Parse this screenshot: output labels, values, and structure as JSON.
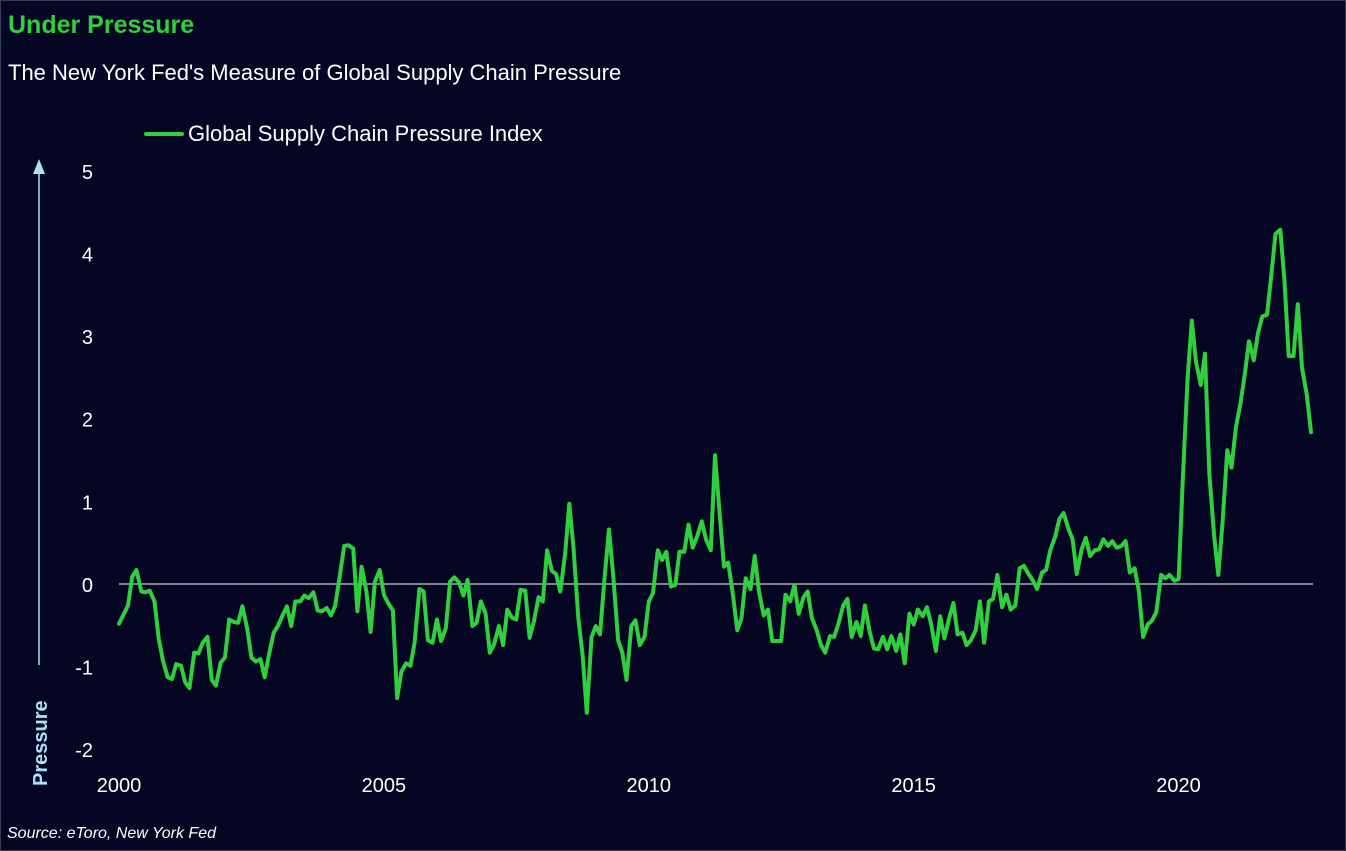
{
  "colors": {
    "background": "#050624",
    "series": "#2fcf3e",
    "title": "#2fcf3e",
    "text": "#ffffff",
    "arrow": "#a9e0f2"
  },
  "header": {
    "title": "Under Pressure",
    "subtitle": "The New York Fed's Measure of Global Supply Chain Pressure"
  },
  "footer": {
    "source": "Source: eToro, New York Fed"
  },
  "chart_data": {
    "type": "line",
    "title": "Under Pressure",
    "subtitle": "The New York Fed's Measure of Global Supply Chain Pressure",
    "ylabel": "Pressure",
    "xlabel": "",
    "legend_position": "top-left",
    "grid": false,
    "zero_line": true,
    "xlim": [
      2000.0,
      2022.5
    ],
    "ylim": [
      -2,
      5
    ],
    "x_ticks": [
      2000,
      2005,
      2010,
      2015,
      2020
    ],
    "y_ticks": [
      -2,
      -1,
      0,
      1,
      2,
      3,
      4,
      5
    ],
    "y_tick_labels": [
      "-2",
      "-1",
      "0",
      "1",
      "2",
      "3",
      "4",
      "5"
    ],
    "x_tick_labels": [
      "2000",
      "2005",
      "2010",
      "2015",
      "2020"
    ],
    "series": [
      {
        "name": "Global Supply Chain Pressure Index",
        "x": [
          2000.0,
          2000.17,
          2000.25,
          2000.33,
          2000.42,
          2000.5,
          2000.58,
          2000.67,
          2000.75,
          2000.83,
          2000.92,
          2001.0,
          2001.08,
          2001.17,
          2001.25,
          2001.33,
          2001.42,
          2001.5,
          2001.58,
          2001.67,
          2001.75,
          2001.83,
          2001.92,
          2002.0,
          2002.08,
          2002.17,
          2002.25,
          2002.33,
          2002.42,
          2002.5,
          2002.58,
          2002.67,
          2002.75,
          2002.83,
          2002.92,
          2003.0,
          2003.08,
          2003.17,
          2003.25,
          2003.33,
          2003.42,
          2003.5,
          2003.58,
          2003.67,
          2003.75,
          2003.83,
          2003.92,
          2004.0,
          2004.08,
          2004.17,
          2004.25,
          2004.33,
          2004.42,
          2004.5,
          2004.58,
          2004.67,
          2004.75,
          2004.83,
          2004.92,
          2005.0,
          2005.08,
          2005.17,
          2005.25,
          2005.33,
          2005.42,
          2005.5,
          2005.58,
          2005.67,
          2005.75,
          2005.83,
          2005.92,
          2006.0,
          2006.08,
          2006.17,
          2006.25,
          2006.33,
          2006.42,
          2006.5,
          2006.58,
          2006.67,
          2006.75,
          2006.83,
          2006.92,
          2007.0,
          2007.08,
          2007.17,
          2007.25,
          2007.33,
          2007.42,
          2007.5,
          2007.58,
          2007.67,
          2007.75,
          2007.83,
          2007.92,
          2008.0,
          2008.08,
          2008.17,
          2008.25,
          2008.33,
          2008.42,
          2008.5,
          2008.58,
          2008.67,
          2008.75,
          2008.83,
          2008.92,
          2009.0,
          2009.08,
          2009.17,
          2009.25,
          2009.33,
          2009.42,
          2009.5,
          2009.58,
          2009.67,
          2009.75,
          2009.83,
          2009.92,
          2010.0,
          2010.08,
          2010.17,
          2010.25,
          2010.33,
          2010.42,
          2010.5,
          2010.58,
          2010.67,
          2010.75,
          2010.83,
          2010.92,
          2011.0,
          2011.08,
          2011.17,
          2011.25,
          2011.33,
          2011.42,
          2011.5,
          2011.58,
          2011.67,
          2011.75,
          2011.83,
          2011.92,
          2012.0,
          2012.08,
          2012.17,
          2012.25,
          2012.33,
          2012.42,
          2012.5,
          2012.58,
          2012.67,
          2012.75,
          2012.83,
          2012.92,
          2013.0,
          2013.08,
          2013.17,
          2013.25,
          2013.33,
          2013.42,
          2013.5,
          2013.58,
          2013.67,
          2013.75,
          2013.83,
          2013.92,
          2014.0,
          2014.08,
          2014.17,
          2014.25,
          2014.33,
          2014.42,
          2014.5,
          2014.58,
          2014.67,
          2014.75,
          2014.83,
          2014.92,
          2015.0,
          2015.08,
          2015.17,
          2015.25,
          2015.33,
          2015.42,
          2015.5,
          2015.58,
          2015.67,
          2015.75,
          2015.83,
          2015.92,
          2016.0,
          2016.08,
          2016.17,
          2016.25,
          2016.33,
          2016.42,
          2016.5,
          2016.58,
          2016.67,
          2016.75,
          2016.83,
          2016.92,
          2017.0,
          2017.08,
          2017.17,
          2017.25,
          2017.33,
          2017.42,
          2017.5,
          2017.58,
          2017.67,
          2017.75,
          2017.83,
          2017.92,
          2018.0,
          2018.08,
          2018.17,
          2018.25,
          2018.33,
          2018.42,
          2018.5,
          2018.58,
          2018.67,
          2018.75,
          2018.83,
          2018.92,
          2019.0,
          2019.08,
          2019.17,
          2019.25,
          2019.33,
          2019.42,
          2019.5,
          2019.58,
          2019.67,
          2019.75,
          2019.83,
          2019.92,
          2020.0,
          2020.08,
          2020.17,
          2020.25,
          2020.33,
          2020.42,
          2020.5,
          2020.58,
          2020.67,
          2020.75,
          2020.83,
          2020.92,
          2021.0,
          2021.08,
          2021.17,
          2021.25,
          2021.33,
          2021.42,
          2021.5,
          2021.58,
          2021.67,
          2021.75,
          2021.83,
          2021.92,
          2022.0,
          2022.08,
          2022.17,
          2022.25,
          2022.33,
          2022.42,
          2022.5
        ],
        "y": [
          -0.47,
          -0.25,
          0.1,
          0.18,
          -0.08,
          -0.09,
          -0.07,
          -0.2,
          -0.65,
          -0.92,
          -1.12,
          -1.14,
          -0.96,
          -0.98,
          -1.18,
          -1.25,
          -0.82,
          -0.83,
          -0.7,
          -0.63,
          -1.15,
          -1.22,
          -0.94,
          -0.88,
          -0.42,
          -0.45,
          -0.46,
          -0.26,
          -0.53,
          -0.88,
          -0.93,
          -0.9,
          -1.12,
          -0.85,
          -0.58,
          -0.5,
          -0.38,
          -0.26,
          -0.5,
          -0.2,
          -0.2,
          -0.13,
          -0.16,
          -0.09,
          -0.31,
          -0.32,
          -0.28,
          -0.37,
          -0.26,
          0.12,
          0.47,
          0.48,
          0.44,
          -0.32,
          0.22,
          -0.08,
          -0.57,
          0.04,
          0.18,
          -0.12,
          -0.22,
          -0.31,
          -1.37,
          -1.05,
          -0.95,
          -0.98,
          -0.7,
          -0.05,
          -0.08,
          -0.67,
          -0.7,
          -0.42,
          -0.68,
          -0.52,
          0.04,
          0.09,
          0.03,
          -0.13,
          0.06,
          -0.5,
          -0.46,
          -0.2,
          -0.35,
          -0.82,
          -0.72,
          -0.5,
          -0.73,
          -0.3,
          -0.4,
          -0.42,
          -0.06,
          -0.07,
          -0.64,
          -0.45,
          -0.15,
          -0.2,
          0.42,
          0.17,
          0.13,
          -0.08,
          0.37,
          0.98,
          0.45,
          -0.4,
          -0.85,
          -1.55,
          -0.63,
          -0.5,
          -0.6,
          0.12,
          0.67,
          0.1,
          -0.67,
          -0.82,
          -1.15,
          -0.5,
          -0.43,
          -0.73,
          -0.63,
          -0.2,
          -0.1,
          0.42,
          0.3,
          0.4,
          -0.02,
          0.0,
          0.4,
          0.4,
          0.73,
          0.45,
          0.6,
          0.77,
          0.55,
          0.42,
          1.57,
          0.93,
          0.22,
          0.27,
          -0.08,
          -0.55,
          -0.4,
          0.08,
          -0.05,
          0.35,
          -0.08,
          -0.37,
          -0.3,
          -0.68,
          -0.68,
          -0.68,
          -0.12,
          -0.2,
          0.0,
          -0.35,
          -0.15,
          -0.08,
          -0.4,
          -0.55,
          -0.73,
          -0.82,
          -0.62,
          -0.63,
          -0.47,
          -0.25,
          -0.17,
          -0.63,
          -0.45,
          -0.62,
          -0.25,
          -0.57,
          -0.77,
          -0.78,
          -0.63,
          -0.78,
          -0.62,
          -0.8,
          -0.6,
          -0.95,
          -0.35,
          -0.48,
          -0.3,
          -0.38,
          -0.27,
          -0.47,
          -0.8,
          -0.38,
          -0.65,
          -0.4,
          -0.22,
          -0.6,
          -0.58,
          -0.73,
          -0.67,
          -0.55,
          -0.2,
          -0.7,
          -0.2,
          -0.17,
          0.12,
          -0.27,
          -0.12,
          -0.3,
          -0.25,
          0.2,
          0.23,
          0.13,
          0.05,
          -0.05,
          0.15,
          0.18,
          0.42,
          0.58,
          0.8,
          0.87,
          0.68,
          0.55,
          0.13,
          0.43,
          0.57,
          0.35,
          0.42,
          0.43,
          0.55,
          0.47,
          0.53,
          0.45,
          0.47,
          0.53,
          0.15,
          0.2,
          -0.07,
          -0.63,
          -0.48,
          -0.43,
          -0.33,
          0.12,
          0.08,
          0.12,
          0.05,
          0.07,
          1.28,
          2.5,
          3.2,
          2.7,
          2.42,
          2.8,
          1.35,
          0.6,
          0.12,
          0.75,
          1.63,
          1.42,
          1.9,
          2.2,
          2.55,
          2.95,
          2.72,
          3.05,
          3.25,
          3.27,
          3.75,
          4.25,
          4.3,
          3.68,
          2.77,
          2.77,
          3.4,
          2.63,
          2.3,
          1.85
        ]
      }
    ]
  }
}
